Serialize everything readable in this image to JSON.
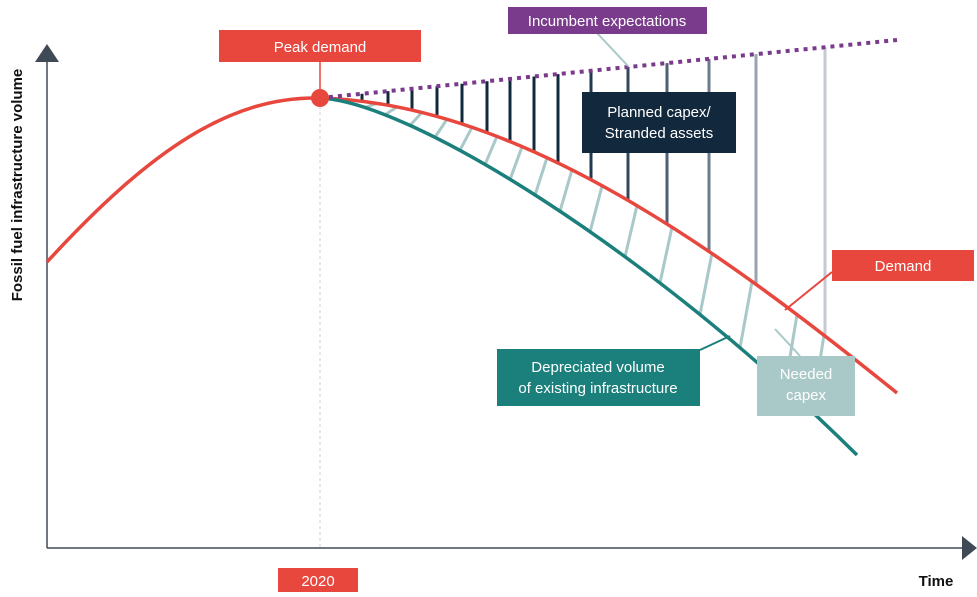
{
  "labels": {
    "peak_demand": "Peak demand",
    "incumbent_expectations": "Incumbent expectations",
    "planned_capex_line1": "Planned capex/",
    "planned_capex_line2": "Stranded assets",
    "demand": "Demand",
    "depreciated_line1": "Depreciated volume",
    "depreciated_line2": "of existing infrastructure",
    "needed_capex_line1": "Needed",
    "needed_capex_line2": "capex",
    "year": "2020",
    "x_axis": "Time",
    "y_axis": "Fossil fuel infrastructure volume"
  },
  "colors": {
    "demand": "#e8473e",
    "incumbent": "#7b3b8c",
    "depreciated": "#1b7f7c",
    "needed_capex": "#a9c8c8",
    "planned_dark": "#12293d",
    "axis": "#404a56",
    "guide": "#cccccc"
  },
  "icons": {
    "x_axis_arrow": "triangle-right-icon",
    "y_axis_arrow": "triangle-up-icon",
    "peak_marker": "circle-marker-icon"
  }
}
